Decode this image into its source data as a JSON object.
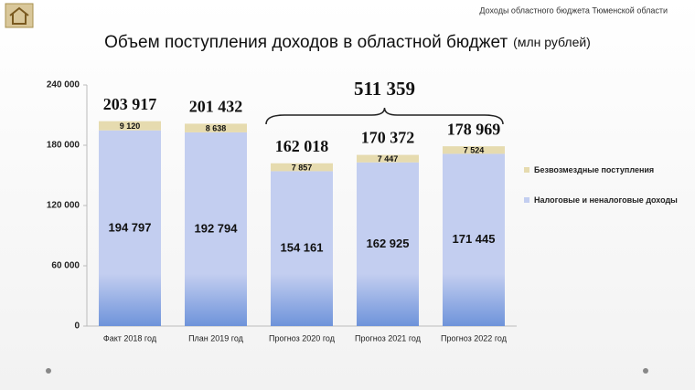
{
  "header": "Доходы областного бюджета Тюменской области",
  "chart_data": {
    "type": "stacked-bar",
    "title": "Объем поступления доходов в областной бюджет",
    "subtitle": "(млн рублей)",
    "categories": [
      "Факт 2018 год",
      "План 2019 год",
      "Прогноз 2020 год",
      "Прогноз 2021 год",
      "Прогноз 2022 год"
    ],
    "series": [
      {
        "name": "Налоговые и неналоговые доходы",
        "color": "#c3cef0",
        "values": [
          194797,
          192794,
          154161,
          162925,
          171445
        ],
        "value_labels": [
          "194 797",
          "192 794",
          "154 161",
          "162 925",
          "171 445"
        ]
      },
      {
        "name": "Безвозмездные поступления",
        "color": "#e6dbaf",
        "values": [
          9120,
          8638,
          7857,
          7447,
          7524
        ],
        "value_labels": [
          "9 120",
          "8 638",
          "7 857",
          "7 447",
          "7 524"
        ]
      }
    ],
    "totals": [
      203917,
      201432,
      162018,
      170372,
      178969
    ],
    "total_labels": [
      "203 917",
      "201 432",
      "162 018",
      "170 372",
      "178 969"
    ],
    "brace": {
      "value": 511359,
      "label": "511 359"
    },
    "ylim": [
      0,
      240000
    ],
    "yticks": [
      0,
      {
        "value": 60000,
        "label": "60 000"
      },
      {
        "value": 120000,
        "label": "120 000"
      },
      {
        "value": 180000,
        "label": "180 000"
      },
      {
        "value": 240000,
        "label": "240 000"
      }
    ],
    "legend": "right"
  }
}
